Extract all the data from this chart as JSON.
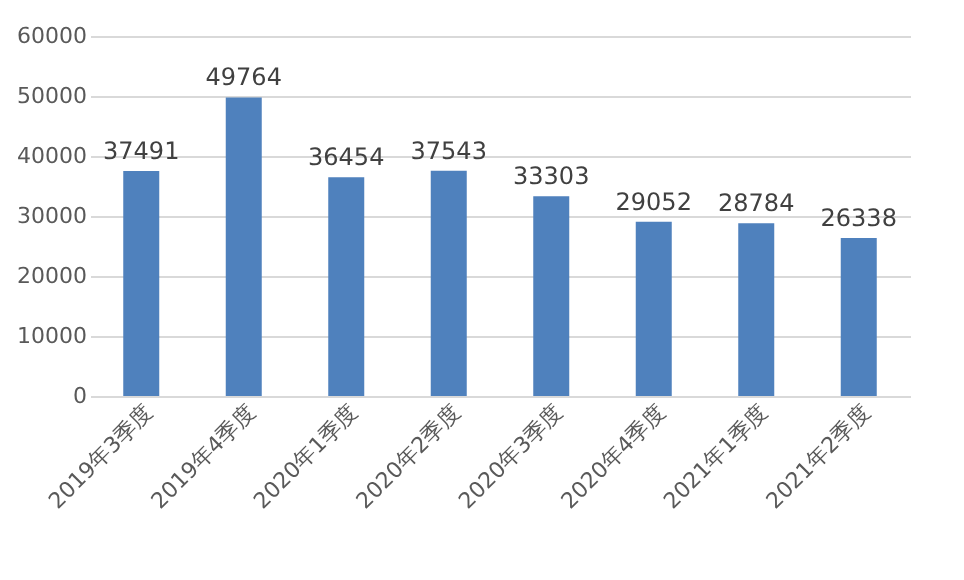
{
  "chart_data": {
    "type": "bar",
    "categories": [
      "2019年3季度",
      "2019年4季度",
      "2020年1季度",
      "2020年2季度",
      "2020年3季度",
      "2020年4季度",
      "2021年1季度",
      "2021年2季度"
    ],
    "values": [
      37491,
      49764,
      36454,
      37543,
      33303,
      29052,
      28784,
      26338
    ],
    "color": "#4f81bd",
    "ylim": [
      0,
      60000
    ],
    "yticks": [
      0,
      10000,
      20000,
      30000,
      40000,
      50000,
      60000
    ],
    "grid": "y",
    "data_labels": true
  }
}
